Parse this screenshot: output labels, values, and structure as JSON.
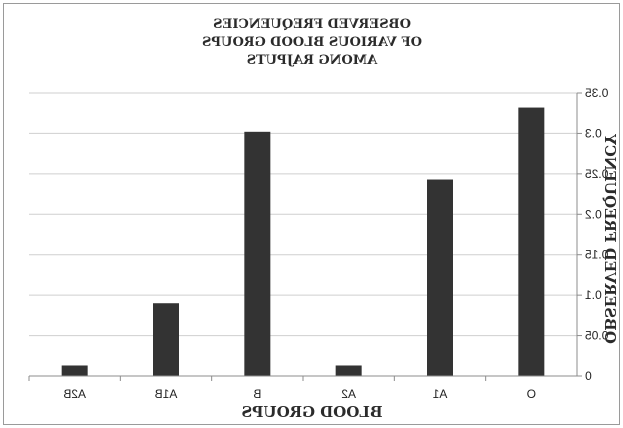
{
  "chart_data": {
    "type": "bar",
    "title_lines": [
      "OBSERVED FREQUENCIES",
      "OF VARIOUS BLOOD GROUPS",
      "AMONG RAJPUTS"
    ],
    "xlabel": "BLOOD GROUPS",
    "ylabel": "OBSERVED FREQUENCY",
    "categories": [
      "O",
      "A1",
      "A2",
      "B",
      "A1B",
      "A2B"
    ],
    "values": [
      0.332,
      0.243,
      0.013,
      0.302,
      0.09,
      0.013
    ],
    "ylim": [
      0,
      0.35
    ],
    "yticks": [
      "0",
      "0.05",
      "0.1",
      "0.15",
      "0.2",
      "0.25",
      "0.3",
      "0.35"
    ],
    "grid": true,
    "mirrored": true,
    "bar_color": "#333333"
  }
}
